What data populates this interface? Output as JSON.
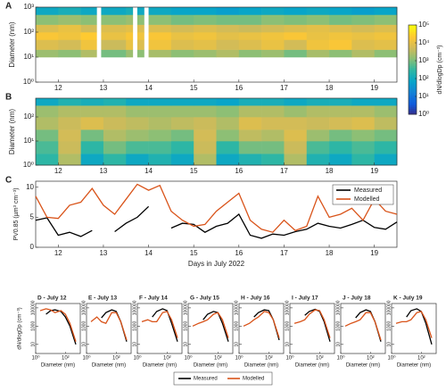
{
  "chart_data": [
    {
      "type": "heatmap",
      "label": "A",
      "ylabel": "Diameter (nm)",
      "x": [
        11.5,
        12,
        12.5,
        12.85,
        12.95,
        13.5,
        13.65,
        13.75,
        13.9,
        14.0,
        14.5,
        15,
        15.5,
        16,
        16.5,
        17,
        17.5,
        18,
        18.5,
        19,
        19.5
      ],
      "y": [
        10,
        20,
        50,
        100,
        200,
        500,
        1000
      ],
      "z": [
        [
          2000,
          1500,
          3000,
          null,
          1000,
          2000,
          null,
          1500,
          null,
          2500,
          1500,
          2000,
          3000,
          1500,
          2000,
          1000,
          2500,
          1500,
          3000,
          1500
        ],
        [
          8000,
          6000,
          15000,
          null,
          5000,
          12000,
          null,
          8000,
          null,
          15000,
          8000,
          10000,
          6000,
          8000,
          12000,
          6000,
          15000,
          20000,
          8000,
          10000
        ],
        [
          20000,
          15000,
          25000,
          null,
          12000,
          20000,
          null,
          15000,
          null,
          20000,
          12000,
          15000,
          10000,
          12000,
          15000,
          20000,
          12000,
          15000,
          12000,
          15000
        ],
        [
          8000,
          12000,
          6000,
          null,
          8000,
          10000,
          null,
          8000,
          null,
          8000,
          6000,
          8000,
          6000,
          5000,
          6000,
          8000,
          10000,
          8000,
          6000,
          8000
        ],
        [
          1500,
          2000,
          1500,
          null,
          1500,
          2000,
          null,
          1500,
          null,
          1500,
          1000,
          1200,
          1000,
          1000,
          1500,
          1200,
          1500,
          1000,
          1200,
          1500
        ],
        [
          100,
          150,
          100,
          null,
          100,
          150,
          null,
          100,
          null,
          100,
          80,
          80,
          60,
          80,
          100,
          80,
          100,
          80,
          60,
          80
        ]
      ],
      "xlim": [
        11.5,
        19.5
      ],
      "xticks": [
        12,
        13,
        14,
        15,
        16,
        17,
        18,
        19
      ],
      "ylim": [
        1,
        1000
      ],
      "ylog": true,
      "yticks": [
        {
          "value": 1,
          "label": "10⁰"
        },
        {
          "value": 10,
          "label": "10¹"
        },
        {
          "value": 100,
          "label": "10²"
        },
        {
          "value": 1000,
          "label": "10³"
        }
      ],
      "zlim": [
        1,
        100000
      ],
      "zlog": true,
      "zlabel": "dN/dlogDp (cm⁻³)",
      "zticks": [
        {
          "value": 1,
          "label": "10⁰"
        },
        {
          "value": 10,
          "label": "10¹"
        },
        {
          "value": 100,
          "label": "10²"
        },
        {
          "value": 1000,
          "label": "10³"
        },
        {
          "value": 10000,
          "label": "10⁴"
        },
        {
          "value": 100000,
          "label": "10⁵"
        }
      ]
    },
    {
      "type": "heatmap",
      "label": "B",
      "ylabel": "Diameter (nm)",
      "x": [
        11.5,
        12,
        12.5,
        13,
        13.5,
        14,
        14.5,
        15,
        15.5,
        16,
        16.5,
        17,
        17.5,
        18,
        18.5,
        19,
        19.5
      ],
      "y": [
        1,
        3,
        10,
        30,
        100,
        300,
        600
      ],
      "z": [
        [
          300,
          3000,
          100,
          300,
          100,
          200,
          100,
          3000,
          100,
          200,
          300,
          3000,
          200,
          100,
          300,
          100
        ],
        [
          500,
          5000,
          300,
          1000,
          500,
          500,
          300,
          5000,
          300,
          1000,
          1000,
          5000,
          500,
          300,
          500,
          300
        ],
        [
          1000,
          6000,
          1000,
          3000,
          2000,
          1500,
          1000,
          6000,
          1500,
          4000,
          3000,
          8000,
          2000,
          1000,
          1500,
          1000
        ],
        [
          3000,
          5000,
          8000,
          5000,
          4000,
          3000,
          4000,
          5000,
          3000,
          8000,
          6000,
          6000,
          5000,
          6000,
          8000,
          4000
        ],
        [
          2000,
          3000,
          3000,
          3000,
          2000,
          2000,
          2000,
          2000,
          1500,
          3000,
          3000,
          2000,
          3000,
          3000,
          3000,
          2000
        ],
        [
          100,
          200,
          150,
          200,
          100,
          100,
          100,
          100,
          80,
          150,
          150,
          100,
          150,
          150,
          100,
          100
        ]
      ],
      "xlim": [
        11.5,
        19.5
      ],
      "xticks": [
        12,
        13,
        14,
        15,
        16,
        17,
        18,
        19
      ],
      "ylim": [
        1,
        600
      ],
      "ylog": true,
      "yticks": [
        {
          "value": 1,
          "label": "10⁰"
        },
        {
          "value": 10,
          "label": "10¹"
        },
        {
          "value": 100,
          "label": "10²"
        }
      ]
    },
    {
      "type": "line",
      "label": "C",
      "xlabel": "Days in July 2022",
      "ylabel": "PV0.85 (µm³ cm⁻³)",
      "x": [
        11.5,
        11.75,
        12,
        12.25,
        12.5,
        12.75,
        13,
        13.25,
        13.5,
        13.75,
        14,
        14.25,
        14.5,
        14.75,
        15,
        15.25,
        15.5,
        15.75,
        16,
        16.25,
        16.5,
        16.75,
        17,
        17.25,
        17.5,
        17.75,
        18,
        18.25,
        18.5,
        18.75,
        19,
        19.25,
        19.5
      ],
      "series": [
        {
          "name": "Measured",
          "color": "#000000",
          "values": [
            4.5,
            4.9,
            2.0,
            2.5,
            1.8,
            2.8,
            null,
            2.6,
            4.0,
            5.0,
            6.8,
            null,
            3.2,
            4.0,
            3.8,
            2.5,
            3.5,
            4.0,
            5.5,
            2.0,
            1.5,
            2.2,
            2.0,
            2.6,
            3.0,
            4.0,
            3.5,
            3.2,
            3.8,
            4.5,
            3.3,
            3.0,
            4.2
          ]
        },
        {
          "name": "Modelled",
          "color": "#d95319",
          "values": [
            8.5,
            5.0,
            4.8,
            7.0,
            7.5,
            9.8,
            7.0,
            5.5,
            8.0,
            10.5,
            9.5,
            10.3,
            6.0,
            4.5,
            3.5,
            3.8,
            6.0,
            7.5,
            9.0,
            4.5,
            3.0,
            2.5,
            4.5,
            2.8,
            3.5,
            8.5,
            5.0,
            5.5,
            6.5,
            4.5,
            8.0,
            6.0,
            5.5
          ]
        }
      ],
      "xlim": [
        11.5,
        19.5
      ],
      "xticks": [
        12,
        13,
        14,
        15,
        16,
        17,
        18,
        19
      ],
      "ylim": [
        0,
        11
      ],
      "yticks": [
        0,
        5,
        10
      ],
      "legend": "upper right"
    },
    {
      "type": "line-panels",
      "panels": [
        "D - July 12",
        "E - July 13",
        "F - July 14",
        "G - July 15",
        "H - July 16",
        "I - July 17",
        "J - July 18",
        "K - July 19"
      ],
      "xlabel": "Diameter (nm)",
      "ylabel": "dN/dlogDp (cm⁻³)",
      "x": [
        2,
        5,
        10,
        20,
        50,
        100,
        200,
        500
      ],
      "xlim": [
        1,
        1000
      ],
      "xlog": true,
      "xticks": [
        {
          "value": 1,
          "label": "10⁰"
        },
        {
          "value": 100,
          "label": "10²"
        }
      ],
      "ylim": [
        1,
        300000
      ],
      "ylog": true,
      "yticks": [
        10,
        1000,
        100000
      ],
      "series": [
        {
          "name": "Measured",
          "color": "#000000",
          "values": [
            [
              null,
              20000,
              50000,
              60000,
              40000,
              10000,
              1000,
              10
            ],
            [
              null,
              null,
              8000,
              30000,
              60000,
              40000,
              3000,
              20
            ],
            [
              null,
              null,
              10000,
              40000,
              80000,
              50000,
              2000,
              20
            ],
            [
              null,
              null,
              5000,
              20000,
              40000,
              30000,
              2000,
              20
            ],
            [
              null,
              null,
              10000,
              30000,
              60000,
              50000,
              5000,
              30
            ],
            [
              null,
              null,
              15000,
              40000,
              70000,
              40000,
              3000,
              20
            ],
            [
              null,
              null,
              8000,
              30000,
              60000,
              40000,
              3000,
              20
            ],
            [
              null,
              null,
              10000,
              50000,
              80000,
              40000,
              2000,
              10
            ]
          ]
        },
        {
          "name": "Modelled",
          "color": "#d95319",
          "values": [
            [
              50000,
              80000,
              60000,
              30000,
              50000,
              20000,
              2000,
              20
            ],
            [
              3000,
              10000,
              3000,
              2000,
              30000,
              30000,
              3000,
              30
            ],
            [
              3000,
              5000,
              3000,
              3000,
              30000,
              40000,
              5000,
              50
            ],
            [
              1000,
              2000,
              3000,
              5000,
              20000,
              30000,
              5000,
              50
            ],
            [
              1000,
              2000,
              5000,
              10000,
              40000,
              30000,
              5000,
              50
            ],
            [
              2000,
              3000,
              5000,
              20000,
              60000,
              50000,
              5000,
              50
            ],
            [
              1000,
              2000,
              3000,
              5000,
              30000,
              30000,
              3000,
              30
            ],
            [
              2000,
              3000,
              3000,
              5000,
              30000,
              40000,
              5000,
              50
            ]
          ]
        }
      ],
      "legend": "bottom"
    }
  ]
}
